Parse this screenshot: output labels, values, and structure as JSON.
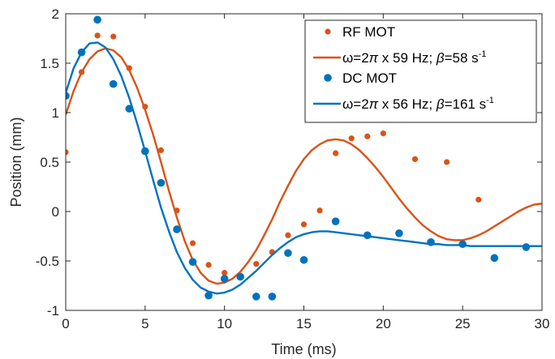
{
  "chart_data": {
    "type": "scatter",
    "xlabel": "Time (ms)",
    "ylabel": "Position (mm)",
    "xlim": [
      0,
      30
    ],
    "ylim": [
      -1,
      2
    ],
    "xticks": [
      0,
      5,
      10,
      15,
      20,
      25,
      30
    ],
    "yticks": [
      -1,
      -0.5,
      0,
      0.5,
      1,
      1.5,
      2
    ],
    "xtick_labels": [
      "0",
      "5",
      "10",
      "15",
      "20",
      "25",
      "30"
    ],
    "ytick_labels": [
      "-1",
      "-0.5",
      "0",
      "0.5",
      "1",
      "1.5",
      "2"
    ],
    "grid": false,
    "legend_position": "top-right",
    "series": [
      {
        "name": "RF MOT",
        "kind": "markers",
        "color": "#D95319",
        "x": [
          0,
          1,
          2,
          3,
          4,
          5,
          6,
          7,
          8,
          9,
          10,
          11,
          12,
          13,
          14,
          15,
          16,
          17,
          18,
          19,
          20,
          22,
          24,
          26
        ],
        "y": [
          0.6,
          1.41,
          1.78,
          1.77,
          1.45,
          1.06,
          0.62,
          0.01,
          -0.32,
          -0.54,
          -0.62,
          -0.65,
          -0.53,
          -0.41,
          -0.24,
          -0.13,
          0.01,
          0.59,
          0.74,
          0.76,
          0.79,
          0.53,
          0.5,
          0.12
        ]
      },
      {
        "name": "ω=2π x 59 Hz; β=58 s⁻¹",
        "kind": "line",
        "color": "#D95319",
        "x": [
          0,
          0.5,
          1,
          1.5,
          2,
          2.5,
          3,
          3.5,
          4,
          4.5,
          5,
          5.5,
          6,
          6.5,
          7,
          7.5,
          8,
          8.5,
          9,
          9.5,
          10,
          10.5,
          11,
          11.5,
          12,
          12.5,
          13,
          13.5,
          14,
          14.5,
          15,
          15.5,
          16,
          16.5,
          17,
          17.5,
          18,
          18.5,
          19,
          19.5,
          20,
          20.5,
          21,
          21.5,
          22,
          22.5,
          23,
          23.5,
          24,
          24.5,
          25,
          25.5,
          26,
          26.5,
          27,
          27.5,
          28,
          28.5,
          29,
          29.5,
          30
        ],
        "y": [
          0.98,
          1.22,
          1.41,
          1.54,
          1.62,
          1.65,
          1.63,
          1.56,
          1.43,
          1.25,
          1.03,
          0.78,
          0.5,
          0.21,
          -0.06,
          -0.3,
          -0.49,
          -0.62,
          -0.7,
          -0.73,
          -0.72,
          -0.68,
          -0.61,
          -0.51,
          -0.39,
          -0.24,
          -0.08,
          0.1,
          0.26,
          0.41,
          0.53,
          0.62,
          0.68,
          0.72,
          0.73,
          0.72,
          0.68,
          0.62,
          0.54,
          0.45,
          0.35,
          0.24,
          0.13,
          0.03,
          -0.06,
          -0.14,
          -0.2,
          -0.25,
          -0.28,
          -0.29,
          -0.29,
          -0.27,
          -0.24,
          -0.2,
          -0.15,
          -0.1,
          -0.05,
          0.0,
          0.04,
          0.07,
          0.08
        ]
      },
      {
        "name": "DC MOT",
        "kind": "markers",
        "color": "#0072BD",
        "x": [
          0,
          1,
          2,
          3,
          4,
          5,
          6,
          7,
          8,
          9,
          10,
          11,
          12,
          13,
          14,
          15,
          17,
          19,
          21,
          23,
          25,
          27,
          29
        ],
        "y": [
          1.17,
          1.61,
          1.94,
          1.29,
          1.04,
          0.61,
          0.29,
          -0.18,
          -0.51,
          -0.85,
          -0.68,
          -0.66,
          -0.86,
          -0.86,
          -0.42,
          -0.49,
          -0.1,
          -0.24,
          -0.22,
          -0.31,
          -0.33,
          -0.47,
          -0.36
        ]
      },
      {
        "name": "ω=2π x 56 Hz; β=161 s⁻¹",
        "kind": "line",
        "color": "#0072BD",
        "x": [
          0,
          0.5,
          1,
          1.5,
          2,
          2.5,
          3,
          3.5,
          4,
          4.5,
          5,
          5.5,
          6,
          6.5,
          7,
          7.5,
          8,
          8.5,
          9,
          9.5,
          10,
          10.5,
          11,
          11.5,
          12,
          12.5,
          13,
          13.5,
          14,
          14.5,
          15,
          15.5,
          16,
          16.5,
          17,
          17.5,
          18,
          18.5,
          19,
          19.5,
          20,
          20.5,
          21,
          21.5,
          22,
          22.5,
          23,
          23.5,
          24,
          24.5,
          25,
          25.5,
          26,
          26.5,
          27,
          27.5,
          28,
          28.5,
          29,
          29.5,
          30
        ],
        "y": [
          1.2,
          1.45,
          1.61,
          1.7,
          1.71,
          1.66,
          1.54,
          1.37,
          1.15,
          0.89,
          0.61,
          0.32,
          0.04,
          -0.2,
          -0.41,
          -0.57,
          -0.69,
          -0.77,
          -0.81,
          -0.83,
          -0.82,
          -0.79,
          -0.74,
          -0.67,
          -0.6,
          -0.52,
          -0.44,
          -0.37,
          -0.31,
          -0.26,
          -0.23,
          -0.21,
          -0.2,
          -0.2,
          -0.21,
          -0.22,
          -0.23,
          -0.24,
          -0.25,
          -0.26,
          -0.27,
          -0.28,
          -0.29,
          -0.3,
          -0.31,
          -0.32,
          -0.33,
          -0.33,
          -0.34,
          -0.34,
          -0.34,
          -0.35,
          -0.35,
          -0.35,
          -0.35,
          -0.35,
          -0.35,
          -0.35,
          -0.35,
          -0.35,
          -0.35
        ]
      }
    ],
    "legend": [
      {
        "kind": "marker",
        "color": "#D95319",
        "text": "RF MOT"
      },
      {
        "kind": "line",
        "color": "#D95319",
        "pre": "ω=2",
        "greek": "π",
        "mid": " x 59 Hz; ",
        "greek2": "β",
        "post": "=58 s",
        "sup": "-1"
      },
      {
        "kind": "marker",
        "color": "#0072BD",
        "text": "DC MOT"
      },
      {
        "kind": "line",
        "color": "#0072BD",
        "pre": "ω=2",
        "greek": "π",
        "mid": " x 56 Hz; ",
        "greek2": "β",
        "post": "=161 s",
        "sup": "-1"
      }
    ]
  }
}
